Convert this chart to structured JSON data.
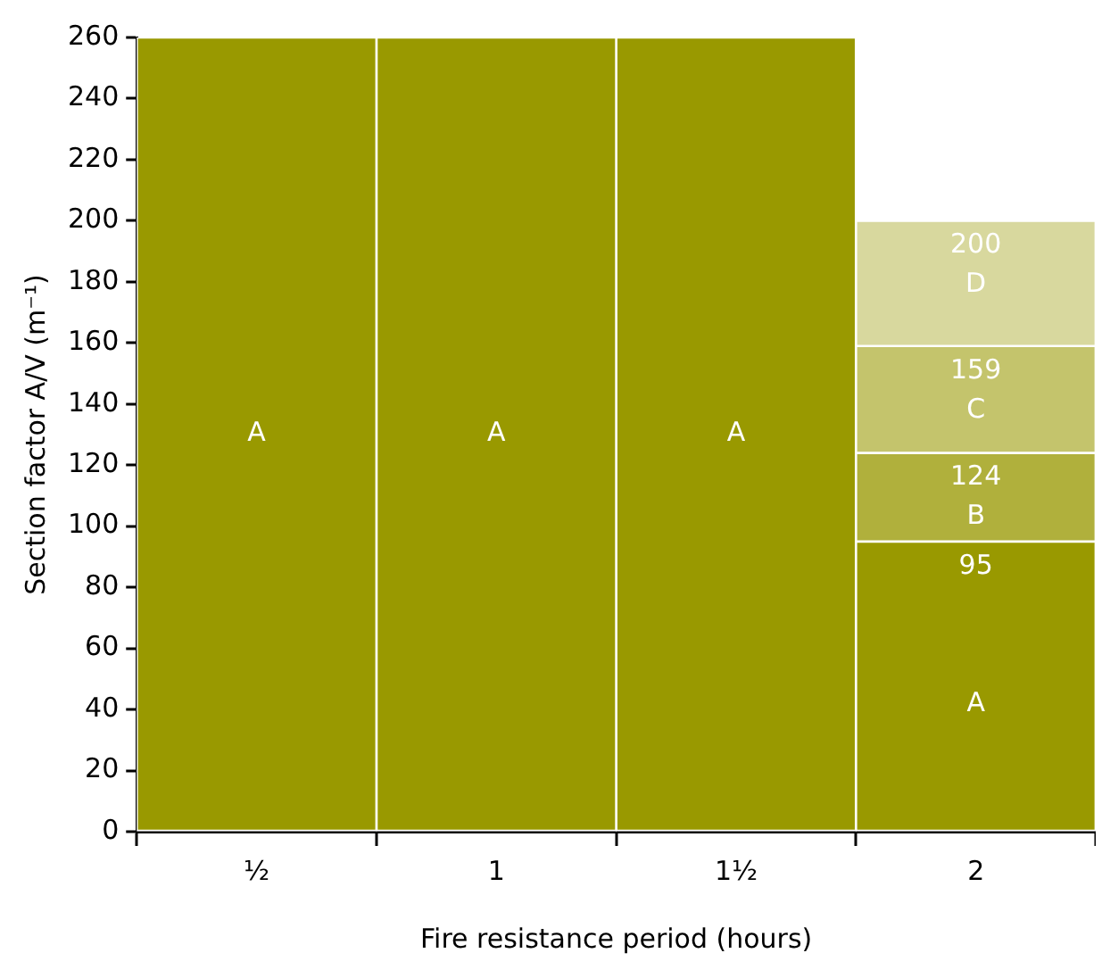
{
  "chart_data": {
    "type": "bar",
    "stacked": true,
    "xlabel": "Fire resistance period (hours)",
    "ylabel": "Section factor A/V (m⁻¹)",
    "categories": [
      "½",
      "1",
      "1½",
      "2"
    ],
    "ylim": [
      0,
      260
    ],
    "yticks": [
      0,
      20,
      40,
      60,
      80,
      100,
      120,
      140,
      160,
      180,
      200,
      220,
      240,
      260
    ],
    "grid": false,
    "legend": false,
    "series": [
      {
        "name": "A",
        "color": "#999900",
        "values": [
          260,
          260,
          260,
          95
        ]
      },
      {
        "name": "B",
        "color": "#b0b03c",
        "values": [
          null,
          null,
          null,
          29
        ]
      },
      {
        "name": "C",
        "color": "#c4c46c",
        "values": [
          null,
          null,
          null,
          35
        ]
      },
      {
        "name": "D",
        "color": "#d8d89e",
        "values": [
          null,
          null,
          null,
          41
        ]
      }
    ],
    "annotations": [
      {
        "text": "95",
        "x": "2",
        "y": 95
      },
      {
        "text": "124",
        "x": "2",
        "y": 124
      },
      {
        "text": "159",
        "x": "2",
        "y": 159
      },
      {
        "text": "200",
        "x": "2",
        "y": 200
      }
    ]
  }
}
